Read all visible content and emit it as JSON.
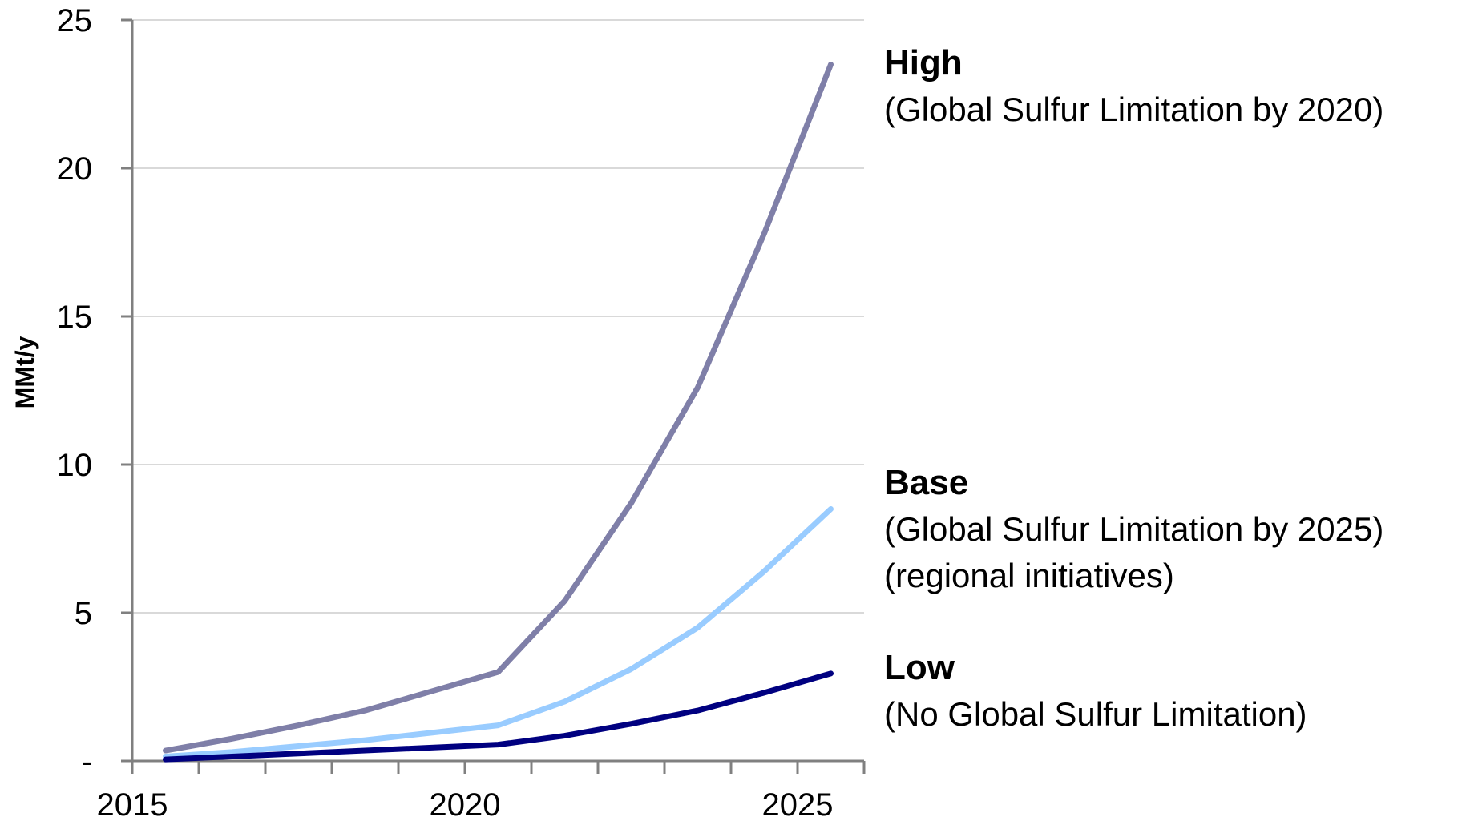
{
  "chart_data": {
    "type": "line",
    "ylabel": "MMt/y",
    "xlabel": "",
    "title": "",
    "xlim": [
      2014.5,
      2025.5
    ],
    "ylim": [
      0,
      25
    ],
    "grid": true,
    "x_ticks": [
      2015,
      2016,
      2017,
      2018,
      2019,
      2020,
      2021,
      2022,
      2023,
      2024,
      2025
    ],
    "x_tick_labels": [
      {
        "value": 2015,
        "label": "2015"
      },
      {
        "value": 2020,
        "label": "2020"
      },
      {
        "value": 2025,
        "label": "2025"
      }
    ],
    "y_ticks": [
      {
        "value": 0,
        "label": "-"
      },
      {
        "value": 5,
        "label": "5"
      },
      {
        "value": 10,
        "label": "10"
      },
      {
        "value": 15,
        "label": "15"
      },
      {
        "value": 20,
        "label": "20"
      },
      {
        "value": 25,
        "label": "25"
      }
    ],
    "x": [
      2015,
      2016,
      2017,
      2018,
      2019,
      2020,
      2021,
      2022,
      2023,
      2024,
      2025
    ],
    "series": [
      {
        "key": "high",
        "name": "High",
        "subtitle_lines": [
          "(Global Sulfur Limitation by 2020)"
        ],
        "color": "#7f7fa8",
        "values": [
          0.35,
          0.75,
          1.2,
          1.7,
          2.35,
          3.0,
          5.4,
          8.7,
          12.6,
          17.8,
          23.5
        ]
      },
      {
        "key": "base",
        "name": "Base",
        "subtitle_lines": [
          "(Global Sulfur Limitation by 2025)",
          "(regional initiatives)"
        ],
        "color": "#99ccff",
        "values": [
          0.15,
          0.3,
          0.5,
          0.7,
          0.95,
          1.2,
          2.0,
          3.1,
          4.5,
          6.4,
          8.5
        ]
      },
      {
        "key": "low",
        "name": "Low",
        "subtitle_lines": [
          "(No Global Sulfur Limitation)"
        ],
        "color": "#000080",
        "values": [
          0.05,
          0.15,
          0.25,
          0.35,
          0.45,
          0.55,
          0.85,
          1.25,
          1.7,
          2.3,
          2.95
        ]
      }
    ]
  }
}
